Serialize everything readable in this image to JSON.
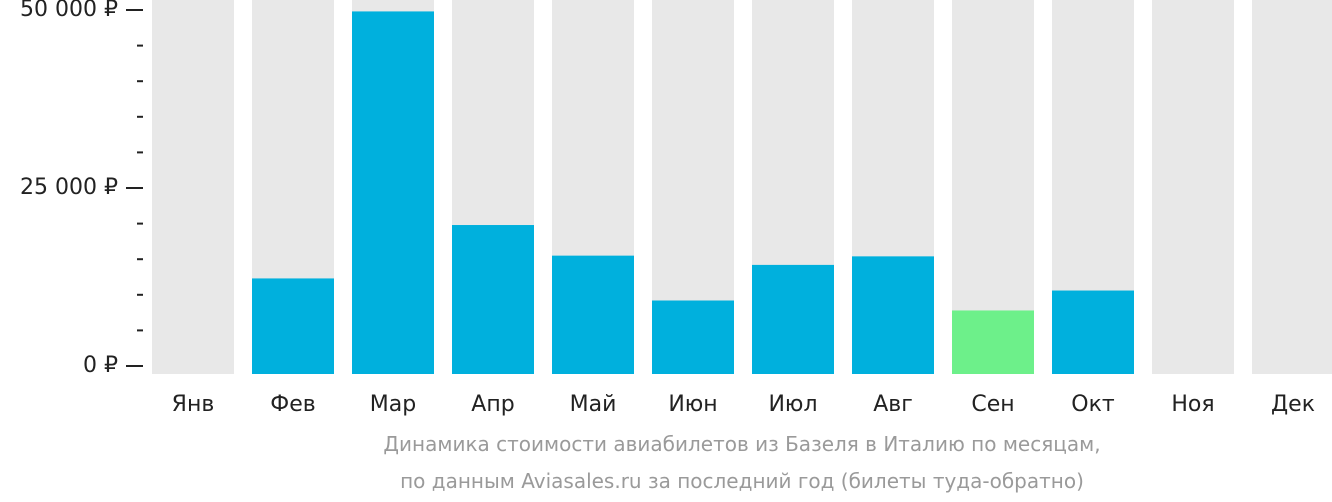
{
  "chart_data": {
    "type": "bar",
    "categories": [
      "Янв",
      "Фев",
      "Мар",
      "Апр",
      "Май",
      "Июн",
      "Июл",
      "Авг",
      "Сен",
      "Окт",
      "Ноя",
      "Дек"
    ],
    "values": [
      null,
      12300,
      49800,
      19800,
      15500,
      9200,
      14200,
      15400,
      7800,
      10600,
      null,
      null
    ],
    "ylim": [
      0,
      50000
    ],
    "y_ticks": [
      {
        "value": 0,
        "label": "0 ₽"
      },
      {
        "value": 25000,
        "label": "25 000 ₽"
      },
      {
        "value": 50000,
        "label": "50 000 ₽"
      }
    ],
    "minor_tick_count_between_labels": 4,
    "highlight_index": 8,
    "colors": {
      "bar": "#00b0dd",
      "highlight_bar": "#6df08a",
      "background_bar": "#e8e8e8",
      "axis": "#222222"
    },
    "caption_lines": [
      "Динамика стоимости авиабилетов из Базеля в Италию по месяцам,",
      "по данным Aviasales.ru за последний год (билеты туда-обратно)"
    ]
  }
}
